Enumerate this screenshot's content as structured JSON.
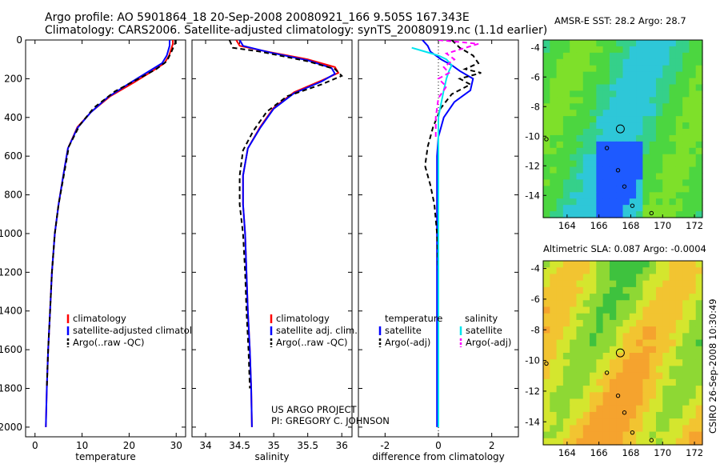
{
  "header": {
    "line1": "Argo profile: AO 5901864_18 20-Sep-2008 20080921_166 9.505S 167.343E",
    "line2": "Climatology: CARS2006. Satellite-adjusted climatology: synTS_20080919.nc (1.1d earlier)"
  },
  "side_label": "CSIRO 26-Sep-2008 10:30:49",
  "project_credit": {
    "line1": "US ARGO PROJECT",
    "line2": "PI: GREGORY C. JOHNSON"
  },
  "colors": {
    "climatology": "#ff0000",
    "satellite": "#0000ff",
    "argo": "#000000",
    "sal_satellite": "#00e5ee",
    "sal_argo": "#ff00ff"
  },
  "chart_data": [
    {
      "id": "temperature",
      "type": "line",
      "xlabel": "temperature",
      "ylabel": "",
      "ylim": [
        2050,
        0
      ],
      "xlim": [
        -2,
        32
      ],
      "xticks": [
        0,
        10,
        20,
        30
      ],
      "yticks": [
        0,
        200,
        400,
        600,
        800,
        1000,
        1200,
        1400,
        1600,
        1800,
        2000
      ],
      "legend": [
        "climatology",
        "satellite-adjusted climatology",
        "Argo(..raw -QC)"
      ],
      "series": [
        {
          "name": "climatology",
          "style": "solid",
          "color": "#ff0000",
          "points": [
            [
              29.3,
              0
            ],
            [
              29.3,
              20
            ],
            [
              28.5,
              80
            ],
            [
              27.5,
              120
            ],
            [
              25,
              160
            ],
            [
              21,
              220
            ],
            [
              16,
              290
            ],
            [
              12,
              370
            ],
            [
              9,
              450
            ],
            [
              7,
              560
            ],
            [
              6,
              700
            ],
            [
              5,
              850
            ],
            [
              4.2,
              1000
            ],
            [
              3.6,
              1200
            ],
            [
              3.2,
              1400
            ],
            [
              2.8,
              1600
            ],
            [
              2.5,
              1800
            ],
            [
              2.3,
              2000
            ]
          ]
        },
        {
          "name": "satellite-adjusted climatology",
          "style": "solid",
          "color": "#0000ff",
          "points": [
            [
              28.6,
              0
            ],
            [
              28.6,
              30
            ],
            [
              28,
              80
            ],
            [
              27,
              120
            ],
            [
              24,
              165
            ],
            [
              20,
              225
            ],
            [
              15.5,
              295
            ],
            [
              11.8,
              375
            ],
            [
              9,
              455
            ],
            [
              7,
              560
            ],
            [
              6,
              700
            ],
            [
              5,
              850
            ],
            [
              4.2,
              1000
            ],
            [
              3.6,
              1200
            ],
            [
              3.2,
              1400
            ],
            [
              2.8,
              1600
            ],
            [
              2.5,
              1800
            ],
            [
              2.3,
              2000
            ]
          ]
        },
        {
          "name": "Argo(..raw -QC)",
          "style": "dash",
          "color": "#000000",
          "points": [
            [
              29.8,
              0
            ],
            [
              29.8,
              15
            ],
            [
              29,
              60
            ],
            [
              28,
              110
            ],
            [
              25.8,
              150
            ],
            [
              22,
              200
            ],
            [
              17,
              265
            ],
            [
              12.5,
              350
            ],
            [
              9.5,
              440
            ],
            [
              7.2,
              550
            ],
            [
              6.2,
              690
            ],
            [
              5,
              850
            ],
            [
              4.2,
              1000
            ],
            [
              3.6,
              1200
            ],
            [
              3.2,
              1400
            ],
            [
              2.8,
              1600
            ],
            [
              2.5,
              1800
            ]
          ]
        }
      ]
    },
    {
      "id": "salinity",
      "type": "line",
      "xlabel": "salinity",
      "ylim": [
        2050,
        0
      ],
      "xlim": [
        33.8,
        36.15
      ],
      "xticks": [
        34,
        34.5,
        35,
        35.5,
        36
      ],
      "legend": [
        "climatology",
        "satellite adj. clim.",
        "Argo(..raw -QC)"
      ],
      "series": [
        {
          "name": "climatology",
          "style": "solid",
          "color": "#ff0000",
          "points": [
            [
              34.45,
              0
            ],
            [
              34.5,
              30
            ],
            [
              34.9,
              60
            ],
            [
              35.5,
              100
            ],
            [
              35.9,
              140
            ],
            [
              35.95,
              170
            ],
            [
              35.7,
              210
            ],
            [
              35.3,
              270
            ],
            [
              35,
              350
            ],
            [
              34.8,
              450
            ],
            [
              34.62,
              560
            ],
            [
              34.55,
              700
            ],
            [
              34.55,
              850
            ],
            [
              34.58,
              1000
            ],
            [
              34.6,
              1200
            ],
            [
              34.62,
              1400
            ],
            [
              34.65,
              1600
            ],
            [
              34.67,
              1800
            ],
            [
              34.68,
              2000
            ]
          ]
        },
        {
          "name": "satellite adj. clim.",
          "style": "solid",
          "color": "#0000ff",
          "points": [
            [
              34.5,
              0
            ],
            [
              34.55,
              30
            ],
            [
              34.95,
              65
            ],
            [
              35.5,
              105
            ],
            [
              35.85,
              145
            ],
            [
              35.9,
              175
            ],
            [
              35.7,
              215
            ],
            [
              35.3,
              275
            ],
            [
              35,
              355
            ],
            [
              34.8,
              455
            ],
            [
              34.62,
              560
            ],
            [
              34.55,
              700
            ],
            [
              34.55,
              850
            ],
            [
              34.58,
              1000
            ],
            [
              34.6,
              1200
            ],
            [
              34.62,
              1400
            ],
            [
              34.65,
              1600
            ],
            [
              34.67,
              1800
            ],
            [
              34.68,
              2000
            ]
          ]
        },
        {
          "name": "Argo(..raw -QC)",
          "style": "dash",
          "color": "#000000",
          "points": [
            [
              34.35,
              0
            ],
            [
              34.4,
              40
            ],
            [
              34.8,
              60
            ],
            [
              35.5,
              110
            ],
            [
              35.9,
              150
            ],
            [
              36,
              185
            ],
            [
              35.7,
              230
            ],
            [
              35.2,
              290
            ],
            [
              34.9,
              370
            ],
            [
              34.7,
              470
            ],
            [
              34.55,
              570
            ],
            [
              34.5,
              700
            ],
            [
              34.5,
              850
            ],
            [
              34.55,
              1000
            ],
            [
              34.58,
              1200
            ],
            [
              34.6,
              1400
            ],
            [
              34.63,
              1600
            ],
            [
              34.65,
              1800
            ]
          ]
        }
      ]
    },
    {
      "id": "difference",
      "type": "line",
      "xlabel": "difference from climatology",
      "ylim": [
        2050,
        0
      ],
      "xlim": [
        -3,
        3
      ],
      "xticks": [
        -2,
        0,
        2
      ],
      "legend_headers": [
        "temperature",
        "salinity"
      ],
      "legend": [
        "satellite",
        "Argo(-adj)",
        "satellite",
        "Argo(-adj)"
      ],
      "series": [
        {
          "name": "temperature satellite",
          "style": "solid",
          "color": "#0000ff",
          "points": [
            [
              -0.6,
              0
            ],
            [
              -0.4,
              30
            ],
            [
              -0.3,
              60
            ],
            [
              0.1,
              100
            ],
            [
              0.5,
              130
            ],
            [
              0.8,
              160
            ],
            [
              1.3,
              200
            ],
            [
              1.2,
              260
            ],
            [
              0.6,
              320
            ],
            [
              0.2,
              400
            ],
            [
              0,
              500
            ],
            [
              -0.05,
              600
            ],
            [
              -0.05,
              800
            ],
            [
              -0.05,
              1000
            ],
            [
              -0.05,
              1200
            ],
            [
              -0.05,
              1400
            ],
            [
              -0.05,
              1600
            ],
            [
              -0.05,
              1800
            ],
            [
              -0.05,
              2000
            ]
          ]
        },
        {
          "name": "temperature Argo(-adj)",
          "style": "dash",
          "color": "#000000",
          "points": [
            [
              0.5,
              0
            ],
            [
              0.8,
              40
            ],
            [
              1.3,
              80
            ],
            [
              1.5,
              120
            ],
            [
              1.0,
              150
            ],
            [
              1.6,
              170
            ],
            [
              0.8,
              200
            ],
            [
              1.2,
              230
            ],
            [
              0.5,
              280
            ],
            [
              0.1,
              350
            ],
            [
              -0.2,
              450
            ],
            [
              -0.4,
              550
            ],
            [
              -0.5,
              650
            ],
            [
              -0.3,
              750
            ],
            [
              -0.15,
              850
            ],
            [
              -0.05,
              1000
            ],
            [
              0,
              1200
            ],
            [
              0,
              1400
            ],
            [
              0,
              1600
            ],
            [
              0,
              1800
            ]
          ]
        },
        {
          "name": "salinity satellite",
          "style": "solid",
          "color": "#00e5ee",
          "points": [
            [
              -1.0,
              40
            ],
            [
              -0.5,
              60
            ],
            [
              0,
              80
            ],
            [
              0.3,
              100
            ],
            [
              0.5,
              130
            ],
            [
              0.4,
              160
            ],
            [
              0.3,
              200
            ],
            [
              0.2,
              260
            ],
            [
              0.1,
              330
            ],
            [
              0,
              400
            ],
            [
              0,
              500
            ],
            [
              0,
              700
            ],
            [
              0,
              1000
            ],
            [
              0,
              1300
            ],
            [
              0,
              1600
            ],
            [
              0,
              1900
            ],
            [
              0,
              2000
            ]
          ]
        },
        {
          "name": "salinity Argo(-adj)",
          "style": "dash",
          "color": "#ff00ff",
          "points": [
            [
              0,
              0
            ],
            [
              1.5,
              20
            ],
            [
              0.3,
              70
            ],
            [
              0.6,
              100
            ],
            [
              0.2,
              140
            ],
            [
              0.4,
              170
            ],
            [
              0,
              200
            ],
            [
              0.3,
              240
            ],
            [
              0,
              300
            ],
            [
              -0.1,
              400
            ],
            [
              -0.1,
              500
            ]
          ]
        }
      ]
    },
    {
      "id": "sst_map",
      "type": "heatmap",
      "title": "AMSR-E SST: 28.2 Argo: 28.7",
      "xlim": [
        162.5,
        172.5
      ],
      "ylim": [
        -15.5,
        -3.5
      ],
      "xticks": [
        164,
        166,
        168,
        170,
        172
      ],
      "yticks": [
        -4,
        -6,
        -8,
        -10,
        -12,
        -14
      ],
      "marker": [
        167.343,
        -9.505
      ]
    },
    {
      "id": "sla_map",
      "type": "heatmap",
      "title": "Altimetric SLA: 0.087 Argo: -0.0004",
      "xlim": [
        162.5,
        172.5
      ],
      "ylim": [
        -15.5,
        -3.5
      ],
      "xticks": [
        164,
        166,
        168,
        170,
        172
      ],
      "yticks": [
        -4,
        -6,
        -8,
        -10,
        -12,
        -14
      ],
      "marker": [
        167.343,
        -9.505
      ]
    }
  ]
}
